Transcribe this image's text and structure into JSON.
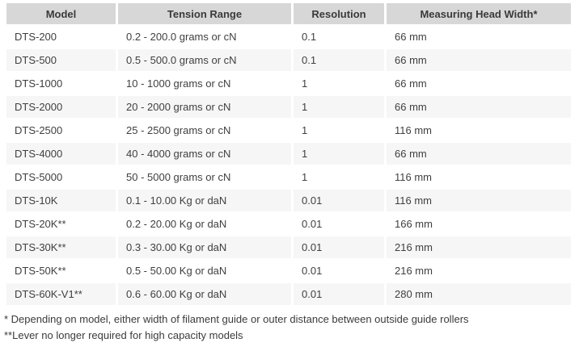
{
  "table": {
    "columns": [
      {
        "key": "model",
        "label": "Model"
      },
      {
        "key": "tension",
        "label": "Tension Range"
      },
      {
        "key": "resolution",
        "label": "Resolution"
      },
      {
        "key": "head_width",
        "label": "Measuring Head Width*"
      }
    ],
    "rows": [
      {
        "model": "DTS-200",
        "tension": "0.2 - 200.0 grams or cN",
        "resolution": "0.1",
        "head_width": "66 mm"
      },
      {
        "model": "DTS-500",
        "tension": "0.5 - 500.0 grams or cN",
        "resolution": "0.1",
        "head_width": "66 mm"
      },
      {
        "model": "DTS-1000",
        "tension": "10 - 1000 grams or cN",
        "resolution": "1",
        "head_width": "66 mm"
      },
      {
        "model": "DTS-2000",
        "tension": "20 - 2000 grams or cN",
        "resolution": "1",
        "head_width": "66 mm"
      },
      {
        "model": "DTS-2500",
        "tension": "25 - 2500 grams or cN",
        "resolution": "1",
        "head_width": "116 mm"
      },
      {
        "model": "DTS-4000",
        "tension": "40 - 4000 grams or cN",
        "resolution": "1",
        "head_width": "66 mm"
      },
      {
        "model": "DTS-5000",
        "tension": "50 - 5000 grams or cN",
        "resolution": "1",
        "head_width": "116 mm"
      },
      {
        "model": "DTS-10K",
        "tension": "0.1 - 10.00 Kg or daN",
        "resolution": "0.01",
        "head_width": "116 mm"
      },
      {
        "model": "DTS-20K**",
        "tension": "0.2 - 20.00 Kg or daN",
        "resolution": "0.01",
        "head_width": "166 mm"
      },
      {
        "model": "DTS-30K**",
        "tension": "0.3 - 30.00 Kg or daN",
        "resolution": "0.01",
        "head_width": "216 mm"
      },
      {
        "model": "DTS-50K**",
        "tension": "0.5 - 50.00 Kg or daN",
        "resolution": "0.01",
        "head_width": "216 mm"
      },
      {
        "model": "DTS-60K-V1**",
        "tension": "0.6 - 60.00 Kg or daN",
        "resolution": "0.01",
        "head_width": "280 mm"
      }
    ]
  },
  "footnotes": [
    "* Depending on model, either width of filament guide or outer distance between outside guide rollers",
    "**Lever no longer required for high capacity models"
  ],
  "colors": {
    "header_bg": "#d7d7d7",
    "stripe_bg": "#f6f6f6",
    "text": "#3f3f3f"
  }
}
